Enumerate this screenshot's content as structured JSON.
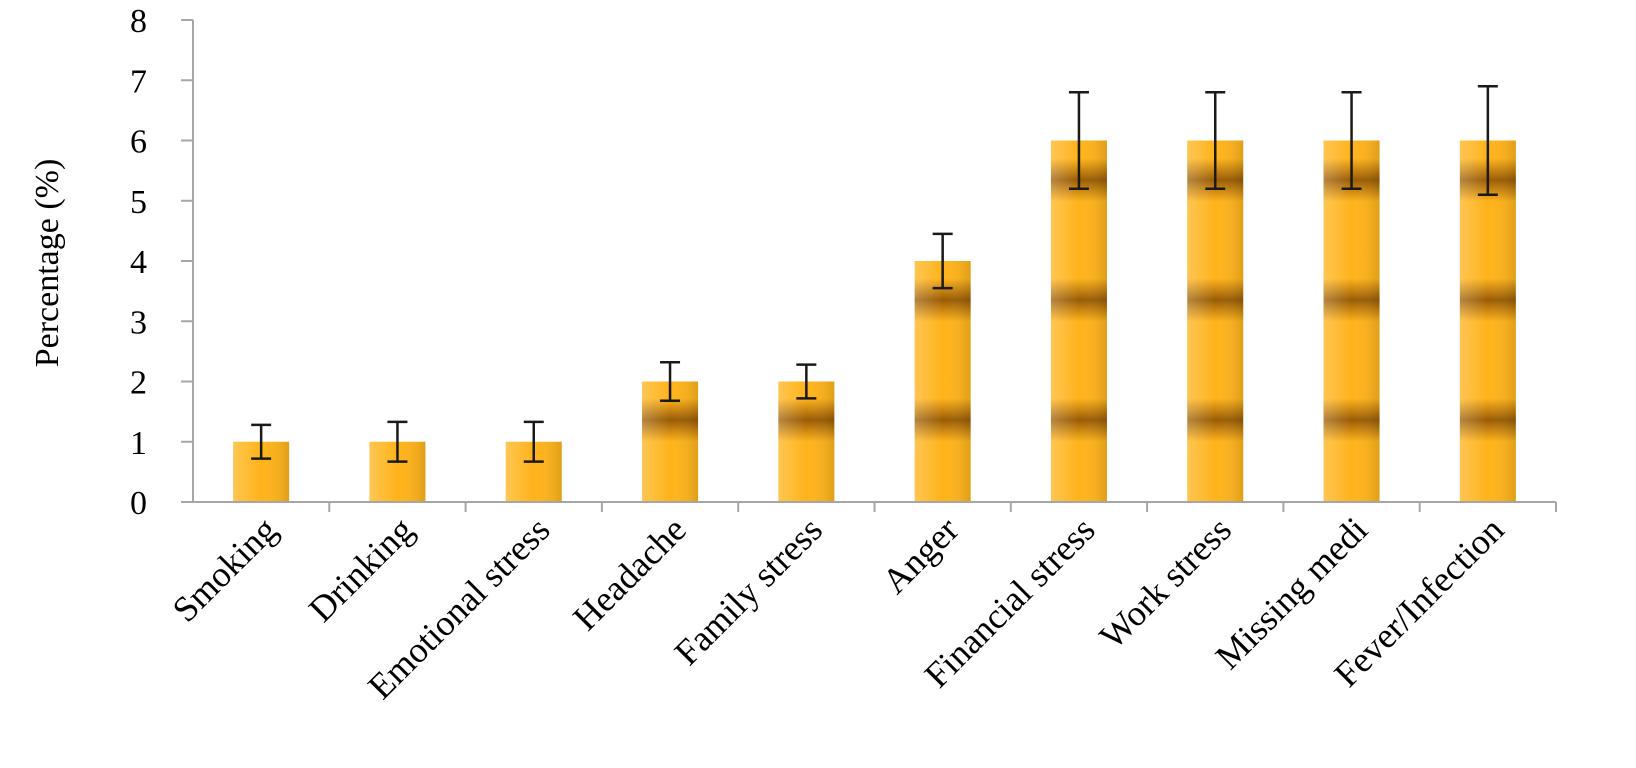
{
  "chart_data": {
    "type": "bar",
    "title": "",
    "xlabel": "",
    "ylabel": "Percentage (%)",
    "ylim": [
      0,
      8
    ],
    "yticks": [
      0,
      1,
      2,
      3,
      4,
      5,
      6,
      7,
      8
    ],
    "grid": false,
    "categories": [
      "Smoking",
      "Drinking",
      "Emotional stress",
      "Headache",
      "Family stress",
      "Anger",
      "Financial stress",
      "Work stress",
      "Missing medi",
      "Fever/Infection"
    ],
    "values": [
      1,
      1,
      1,
      2,
      2,
      4,
      6,
      6,
      6,
      6
    ],
    "error": [
      0.28,
      0.33,
      0.33,
      0.32,
      0.28,
      0.45,
      0.8,
      0.8,
      0.8,
      0.9
    ],
    "colors": {
      "bar_light": "#ffb31a",
      "bar_dark": "#9a5c05",
      "axis": "#a6a6a6",
      "error_bar": "#1a1a1a"
    }
  }
}
